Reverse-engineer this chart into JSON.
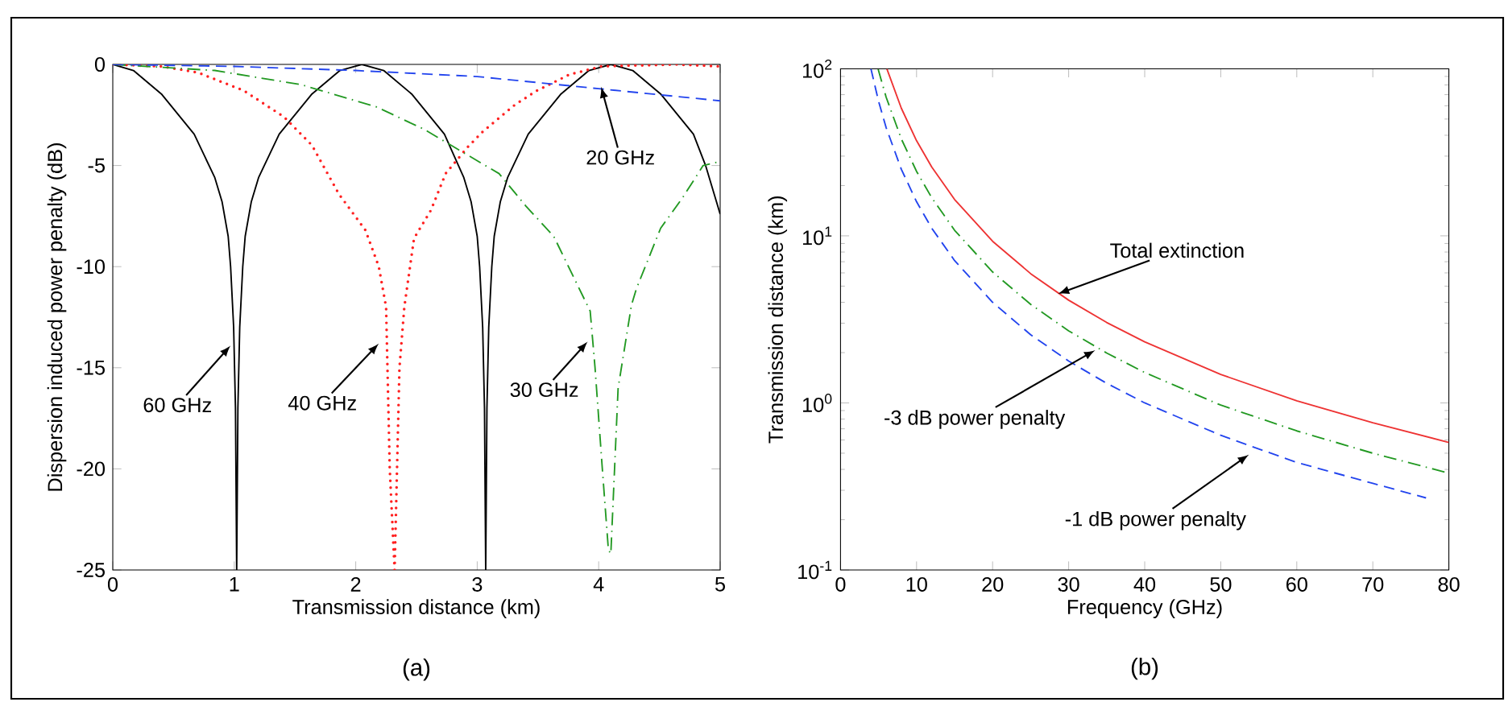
{
  "chart_data": [
    {
      "type": "line",
      "xlabel": "Transmission distance (km)",
      "ylabel": "Dispersion induced power penalty (dB)",
      "xlim": [
        0,
        5
      ],
      "ylim": [
        -25,
        0
      ],
      "xticks": [
        0,
        1,
        2,
        3,
        4,
        5
      ],
      "yticks": [
        -25,
        -20,
        -15,
        -10,
        -5,
        0
      ],
      "marker": "none",
      "series": [
        {
          "color": "#000000",
          "line_style": "solid",
          "x": [
            0,
            0.17,
            0.4,
            0.67,
            0.84,
            0.9,
            0.95,
            0.97,
            0.995,
            1.01,
            1.02,
            1.03,
            1.045,
            1.07,
            1.09,
            1.14,
            1.2,
            1.37,
            1.64,
            1.87,
            2.05,
            2.23,
            2.46,
            2.73,
            2.89,
            2.95,
            3.0,
            3.02,
            3.045,
            3.06,
            3.07,
            3.08,
            3.095,
            3.12,
            3.14,
            3.19,
            3.25,
            3.42,
            3.69,
            3.92,
            4.1,
            4.28,
            4.51,
            4.78,
            4.88,
            5.0
          ],
          "values": [
            0,
            -0.3,
            -1.46,
            -3.45,
            -5.6,
            -6.8,
            -8.5,
            -10,
            -13,
            -17,
            -25,
            -17,
            -13,
            -10,
            -8.5,
            -6.8,
            -5.6,
            -3.45,
            -1.46,
            -0.3,
            0,
            -0.3,
            -1.46,
            -3.45,
            -5.6,
            -6.8,
            -8.5,
            -10,
            -13,
            -17,
            -25,
            -17,
            -13,
            -10,
            -8.5,
            -6.8,
            -5.6,
            -3.45,
            -1.46,
            -0.3,
            0,
            -0.3,
            -1.46,
            -3.45,
            -5.0,
            -7.4
          ]
        },
        {
          "color": "#ff2020",
          "line_style": "dotted",
          "x": [
            0,
            0.4,
            0.7,
            1.08,
            1.41,
            1.64,
            1.86,
            2.08,
            2.19,
            2.25,
            2.28,
            2.32,
            2.36,
            2.4,
            2.48,
            2.62,
            2.74,
            2.92,
            3.05,
            3.31,
            3.49,
            3.76,
            4.02,
            4.64,
            5.0
          ],
          "values": [
            0,
            -0.1,
            -0.4,
            -1.3,
            -2.6,
            -4.0,
            -6.4,
            -8.2,
            -10,
            -12,
            -20,
            -25,
            -15,
            -12,
            -8.6,
            -7.2,
            -5.4,
            -4.1,
            -3.3,
            -2.0,
            -1.3,
            -0.5,
            -0.1,
            0,
            -0.1
          ]
        },
        {
          "color": "#229922",
          "line_style": "dashdot",
          "x": [
            0,
            0.84,
            1.55,
            2.17,
            2.56,
            2.87,
            3.18,
            3.4,
            3.63,
            3.8,
            3.93,
            3.97,
            4.03,
            4.08,
            4.1,
            4.16,
            4.27,
            4.31,
            4.51,
            4.69,
            4.86,
            5.0
          ],
          "values": [
            0,
            -0.3,
            -1.0,
            -2.1,
            -3.2,
            -4.3,
            -5.4,
            -7.0,
            -8.5,
            -10.6,
            -12.2,
            -15,
            -20,
            -24,
            -24.2,
            -16,
            -11.9,
            -11.1,
            -8.1,
            -6.6,
            -5.0,
            -4.8
          ]
        },
        {
          "color": "#2244ee",
          "line_style": "dashed",
          "x": [
            0,
            1.0,
            2.0,
            3.0,
            4.0,
            5.0
          ],
          "values": [
            0,
            -0.1,
            -0.3,
            -0.6,
            -1.2,
            -1.8
          ]
        }
      ],
      "annotations": [
        {
          "text": "60 GHz",
          "x": 0.97,
          "y": -13.9
        },
        {
          "text": "40 GHz",
          "x": 2.19,
          "y": -13.8
        },
        {
          "text": "30 GHz",
          "x": 3.91,
          "y": -13.7
        },
        {
          "text": "20 GHz",
          "x": 4.02,
          "y": -1.1
        },
        "(a)"
      ]
    },
    {
      "type": "line",
      "xlabel": "Frequency (GHz)",
      "ylabel": "Transmission distance (km)",
      "log": "y",
      "xlim": [
        0,
        80
      ],
      "ylim": [
        0.1,
        100
      ],
      "xticks": [
        0,
        10,
        20,
        30,
        40,
        50,
        60,
        70,
        80
      ],
      "yticks": [
        {
          "value": 0.1,
          "label": "10$^{-1}$"
        },
        {
          "value": 1,
          "label": "10$^{0}$"
        },
        {
          "value": 10,
          "label": "10$^{1}$"
        },
        {
          "value": 100,
          "label": "10$^{2}$"
        }
      ],
      "marker": "none",
      "series": [
        {
          "color": "#ee3333",
          "line_style": "solid",
          "x": [
            6.1,
            8,
            10,
            12,
            15,
            20,
            25,
            30,
            35,
            40,
            50,
            60,
            70,
            80
          ],
          "values": [
            99.8,
            58.0,
            37.1,
            25.8,
            16.5,
            9.28,
            5.94,
            4.12,
            3.03,
            2.32,
            1.48,
            1.03,
            0.76,
            0.58
          ]
        },
        {
          "color": "#229922",
          "line_style": "dashdot",
          "x": [
            4.95,
            6,
            8,
            10,
            12,
            15,
            20,
            25,
            30,
            35,
            40,
            50,
            60,
            70,
            80
          ],
          "values": [
            99.3,
            67.6,
            38.0,
            24.3,
            16.9,
            10.8,
            6.08,
            3.89,
            2.7,
            1.99,
            1.52,
            0.97,
            0.68,
            0.5,
            0.38
          ]
        },
        {
          "color": "#2244ee",
          "line_style": "dashed",
          "x": [
            4.0,
            5,
            6,
            8,
            10,
            12,
            15,
            20,
            25,
            30,
            35,
            40,
            50,
            60,
            70,
            77
          ],
          "values": [
            100,
            64,
            44.4,
            25,
            16,
            11.1,
            7.11,
            4.0,
            2.56,
            1.78,
            1.31,
            1.0,
            0.64,
            0.44,
            0.33,
            0.27
          ]
        }
      ],
      "annotations": [
        {
          "text": "Total extinction",
          "x": 28.6,
          "y": 4.5
        },
        {
          "text": "-3 dB power penalty",
          "x": 33.5,
          "y": 2.07
        },
        {
          "text": "-1 dB power penalty",
          "x": 53.7,
          "y": 0.49
        },
        "(b)"
      ]
    }
  ]
}
